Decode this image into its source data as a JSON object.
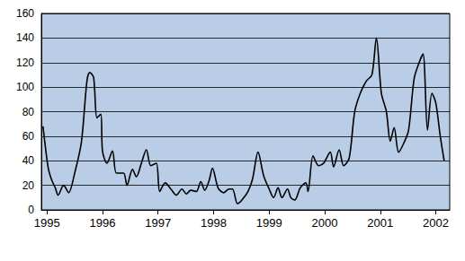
{
  "chart_data": {
    "type": "line",
    "color": "#000000",
    "grid": true,
    "x": [
      1994.93,
      1995.02,
      1995.08,
      1995.15,
      1995.2,
      1995.3,
      1995.39,
      1995.5,
      1995.62,
      1995.72,
      1995.77,
      1995.84,
      1995.9,
      1995.97,
      1996.0,
      1996.08,
      1996.18,
      1996.25,
      1996.38,
      1996.44,
      1996.54,
      1996.61,
      1996.7,
      1996.79,
      1996.87,
      1996.97,
      1997.03,
      1997.13,
      1997.23,
      1997.33,
      1997.43,
      1997.51,
      1997.59,
      1997.69,
      1997.77,
      1997.84,
      1997.92,
      1997.98,
      1998.08,
      1998.18,
      1998.28,
      1998.34,
      1998.43,
      1998.51,
      1998.62,
      1998.7,
      1998.8,
      1998.9,
      1999.0,
      1999.08,
      1999.16,
      1999.23,
      1999.33,
      1999.39,
      1999.46,
      1999.56,
      1999.66,
      1999.7,
      1999.79,
      1999.89,
      1999.98,
      2000.1,
      2000.16,
      2000.26,
      2000.34,
      2000.44,
      2000.54,
      2000.64,
      2000.75,
      2000.85,
      2000.93,
      2001.02,
      2001.11,
      2001.18,
      2001.25,
      2001.33,
      2001.43,
      2001.51,
      2001.61,
      2001.7,
      2001.77,
      2001.85,
      2001.93,
      2002.0,
      2002.08,
      2002.15
    ],
    "values": [
      68,
      35,
      25,
      18,
      12,
      20,
      14,
      30,
      55,
      105,
      112,
      108,
      75,
      78,
      48,
      38,
      48,
      30,
      30,
      20,
      33,
      27,
      38,
      49,
      36,
      38,
      15,
      22,
      17,
      12,
      17,
      13,
      16,
      15,
      23,
      16,
      24,
      34,
      18,
      14,
      17,
      17,
      5,
      8,
      15,
      25,
      47,
      28,
      17,
      10,
      18,
      10,
      17,
      10,
      8,
      18,
      22,
      15,
      44,
      36,
      38,
      47,
      35,
      49,
      36,
      42,
      80,
      95,
      105,
      110,
      140,
      95,
      80,
      56,
      67,
      47,
      55,
      65,
      107,
      120,
      127,
      65,
      95,
      87,
      60,
      40
    ],
    "xlim": [
      1994.9,
      2002.25
    ],
    "xticks": [
      1995,
      1996,
      1997,
      1998,
      1999,
      2000,
      2001,
      2002
    ],
    "ylim": [
      0,
      160
    ],
    "yticks": [
      0,
      20,
      40,
      60,
      80,
      100,
      120,
      140,
      160
    ]
  }
}
